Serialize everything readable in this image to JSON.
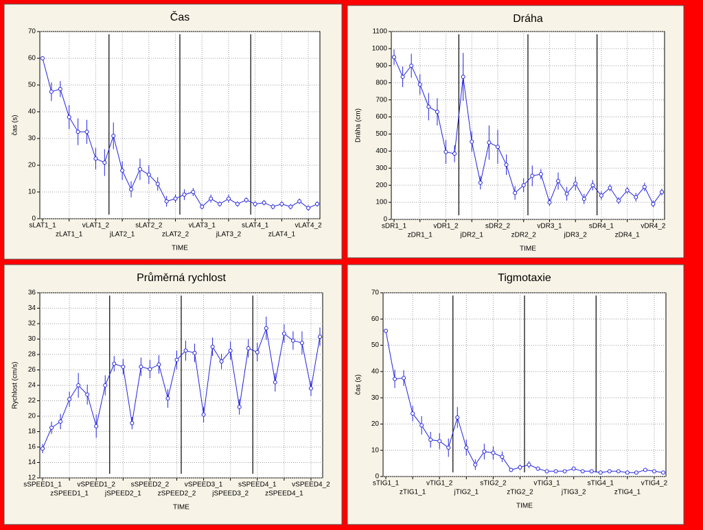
{
  "chart_data": [
    {
      "type": "line",
      "title": "Čas",
      "ylabel": "čas (s)",
      "xlabel": "TIME",
      "color": "#2222dd",
      "grid": true,
      "categories": [
        "sLAT1_1",
        null,
        null,
        "zLAT1_1",
        null,
        null,
        "vLAT1_2",
        null,
        null,
        "jLAT2_1",
        null,
        null,
        "sLAT2_2",
        null,
        null,
        "zLAT2_2",
        null,
        null,
        "vLAT3_1",
        null,
        null,
        "jLAT3_2",
        null,
        null,
        "sLAT4_1",
        null,
        null,
        "zLAT4_1",
        null,
        null,
        "vLAT4_2",
        null
      ],
      "values": [
        60,
        47.5,
        48.5,
        38,
        32.5,
        32.5,
        22.5,
        21,
        31,
        18,
        11,
        18.5,
        16.5,
        13,
        6.5,
        7.5,
        9,
        10,
        4.5,
        7.5,
        5.5,
        7.5,
        5.5,
        7,
        5.5,
        6,
        4.5,
        5.5,
        4.5,
        6.5,
        4,
        5.5
      ],
      "errors": [
        0.5,
        3.5,
        3,
        4.5,
        5,
        4.5,
        4,
        5,
        5,
        3.5,
        3,
        4,
        3.5,
        2.5,
        2,
        1.5,
        2,
        1.5,
        1,
        1.5,
        1,
        1.5,
        1,
        1,
        1,
        1,
        1,
        1,
        1,
        1,
        1,
        1
      ],
      "ylim": [
        0,
        70
      ],
      "yticks": [
        0,
        10,
        20,
        30,
        40,
        50,
        60,
        70
      ]
    },
    {
      "type": "line",
      "title": "Dráha",
      "ylabel": "Dráha (cm)",
      "xlabel": "TIME",
      "color": "#2222dd",
      "grid": true,
      "categories": [
        "sDR1_1",
        null,
        null,
        "zDR1_1",
        null,
        null,
        "vDR1_2",
        null,
        null,
        "jDR2_1",
        null,
        null,
        "sDR2_2",
        null,
        null,
        "zDR2_2",
        null,
        null,
        "vDR3_1",
        null,
        null,
        "jDR3_2",
        null,
        null,
        "sDR4_1",
        null,
        null,
        "zDR4_1",
        null,
        null,
        "vDR4_2",
        null
      ],
      "values": [
        950,
        835,
        900,
        790,
        660,
        630,
        395,
        385,
        835,
        455,
        215,
        450,
        425,
        320,
        155,
        200,
        255,
        265,
        100,
        225,
        150,
        210,
        120,
        200,
        140,
        185,
        110,
        170,
        130,
        190,
        90,
        160
      ],
      "errors": [
        45,
        60,
        70,
        60,
        80,
        80,
        70,
        50,
        140,
        60,
        40,
        100,
        100,
        60,
        40,
        40,
        60,
        30,
        20,
        50,
        40,
        40,
        30,
        30,
        25,
        20,
        20,
        20,
        25,
        25,
        20,
        20
      ],
      "ylim": [
        0,
        1100
      ],
      "yticks": [
        0,
        100,
        200,
        300,
        400,
        500,
        600,
        700,
        800,
        900,
        1000,
        1100
      ]
    },
    {
      "type": "line",
      "title": "Průměrná rychlost",
      "ylabel": "Rychlost (cm/s)",
      "xlabel": "TIME",
      "color": "#2222dd",
      "grid": true,
      "categories": [
        "sSPEED1_1",
        null,
        null,
        "zSPEED1_1",
        null,
        null,
        "vSPEED1_2",
        null,
        null,
        "jSPEED2_1",
        null,
        null,
        "sSPEED2_2",
        null,
        null,
        "zSPEED2_2",
        null,
        null,
        "vSPEED3_1",
        null,
        null,
        "jSPEED3_2",
        null,
        null,
        "sSPEED4_1",
        null,
        null,
        "zSPEED4_1",
        null,
        null,
        "vSPEED4_2",
        null
      ],
      "values": [
        15.8,
        18.5,
        19.3,
        22.2,
        24,
        22.8,
        18.7,
        24,
        26.8,
        26.4,
        19.1,
        26.4,
        26.1,
        26.7,
        22.3,
        27.3,
        28.5,
        28.2,
        20.2,
        29,
        27.1,
        28.5,
        21.2,
        28.8,
        28.3,
        31.4,
        24.4,
        30.7,
        29.8,
        29.5,
        23.6,
        30.3
      ],
      "errors": [
        0.6,
        0.8,
        1,
        1,
        1.6,
        1.3,
        1.5,
        1.3,
        1,
        1,
        0.8,
        1.2,
        1.2,
        1.2,
        1.2,
        1.2,
        1.3,
        1.2,
        1,
        1.2,
        1,
        1.2,
        1,
        1.2,
        1.2,
        1.5,
        1.2,
        1.2,
        1.2,
        1.5,
        1,
        1.2
      ],
      "ylim": [
        12,
        36
      ],
      "yticks": [
        12,
        14,
        16,
        18,
        20,
        22,
        24,
        26,
        28,
        30,
        32,
        34,
        36
      ]
    },
    {
      "type": "line",
      "title": "Tigmotaxie",
      "ylabel": "čas (s)",
      "xlabel": "TIME",
      "color": "#2222dd",
      "grid": true,
      "categories": [
        "sTIG1_1",
        null,
        null,
        "zTIG1_1",
        null,
        null,
        "vTIG1_2",
        null,
        null,
        "jTIG2_1",
        null,
        null,
        "sTIG2_2",
        null,
        null,
        "zTIG2_2",
        null,
        null,
        "vTIG3_1",
        null,
        null,
        "jTIG3_2",
        null,
        null,
        "sTIG4_1",
        null,
        null,
        "zTIG4_1",
        null,
        null,
        "vTIG4_2",
        null
      ],
      "values": [
        55.5,
        37.2,
        37.5,
        24,
        19.5,
        14,
        13.5,
        11,
        22.5,
        11,
        4.5,
        9.5,
        9,
        7.5,
        2.5,
        3.5,
        4.5,
        3,
        2,
        2,
        2,
        3,
        2,
        2,
        1.5,
        2,
        2,
        1.5,
        1.5,
        2.5,
        2,
        1.5
      ],
      "errors": [
        0.5,
        3.5,
        3,
        3,
        3.5,
        3,
        3,
        3.5,
        4,
        3,
        2,
        3,
        2.5,
        2,
        0.8,
        1,
        1.3,
        0.8,
        0.5,
        0.5,
        0.5,
        0.5,
        0.4,
        0.4,
        0.4,
        0.4,
        0.4,
        0.4,
        0.4,
        0.4,
        0.4,
        0.4
      ],
      "ylim": [
        0,
        70
      ],
      "yticks": [
        0,
        10,
        20,
        30,
        40,
        50,
        60,
        70
      ]
    }
  ]
}
